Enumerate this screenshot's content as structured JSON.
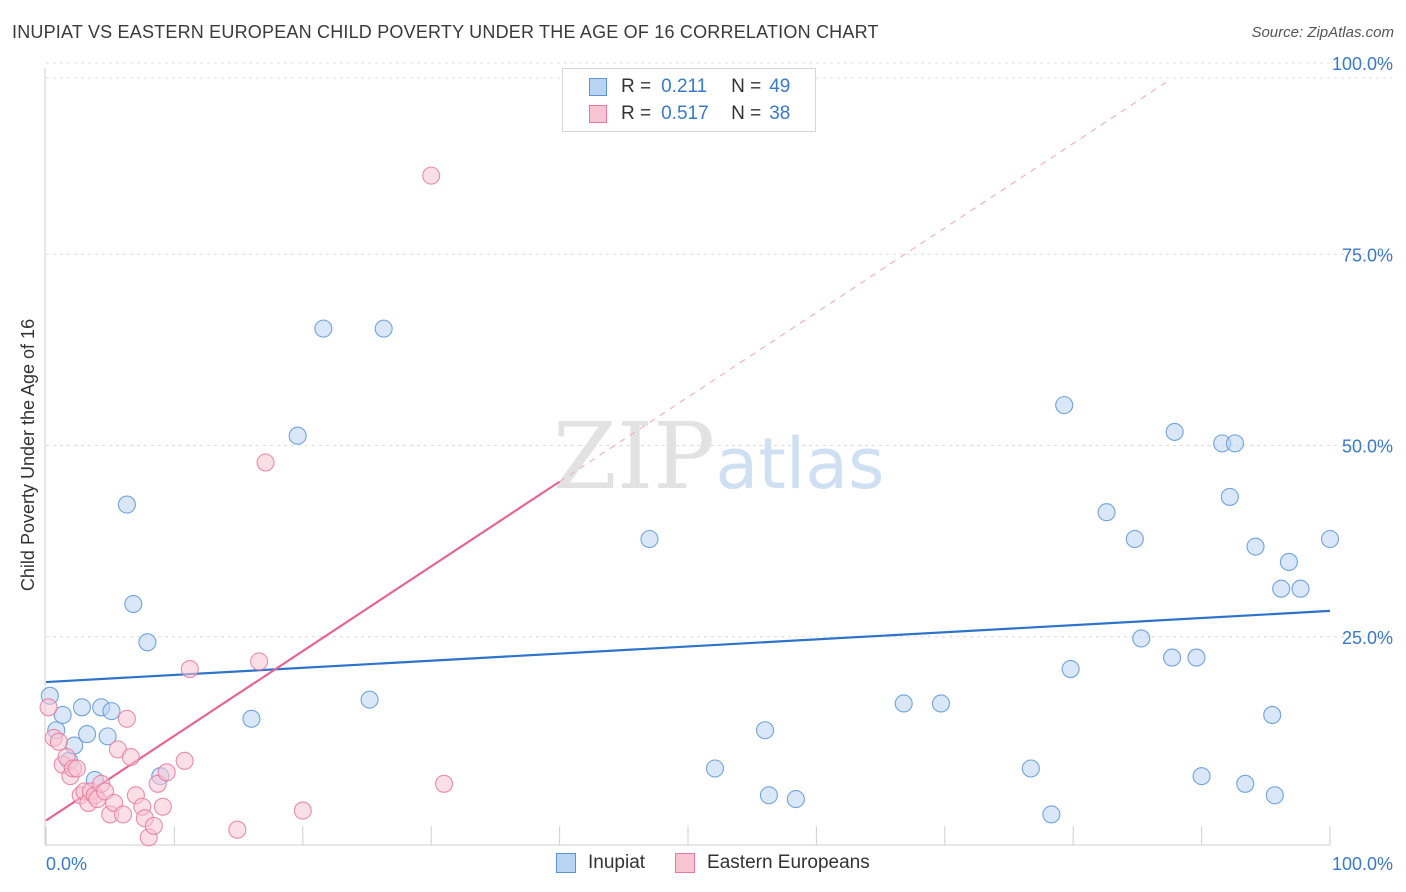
{
  "title": "INUPIAT VS EASTERN EUROPEAN CHILD POVERTY UNDER THE AGE OF 16 CORRELATION CHART",
  "source": "Source: ZipAtlas.com",
  "watermark": {
    "zip": "ZIP",
    "atlas": "atlas"
  },
  "legend": {
    "rows": [
      {
        "r_label": "R =",
        "r_value": "0.211",
        "n_label": "N =",
        "n_value": "49"
      },
      {
        "r_label": "R =",
        "r_value": "0.517",
        "n_label": "N =",
        "n_value": "38"
      }
    ]
  },
  "bottom_legend": {
    "items": [
      "Inupiat",
      "Eastern Europeans"
    ]
  },
  "chart_data": {
    "type": "scatter",
    "title": "INUPIAT VS EASTERN EUROPEAN CHILD POVERTY UNDER THE AGE OF 16 CORRELATION CHART",
    "xlabel": "",
    "ylabel": "Child Poverty Under the Age of 16",
    "xlim": [
      0,
      100
    ],
    "ylim": [
      0,
      100
    ],
    "x_tick_labels": [
      "0.0%",
      "100.0%"
    ],
    "y_tick_labels": [
      "100.0%",
      "75.0%",
      "50.0%",
      "25.0%"
    ],
    "y_ticks": [
      100,
      75,
      50,
      25
    ],
    "grid": true,
    "legend_position": "top-center",
    "colors": {
      "inupiat": "#5b95d8",
      "inupiat_fill": "#b9d3f2",
      "eastern": "#e8799e",
      "eastern_fill": "#f8c4d4",
      "tick_label": "#3a78c8"
    },
    "series": [
      {
        "name": "Inupiat",
        "color": "#5b95d8",
        "r": 0.211,
        "n": 49,
        "trend": {
          "x": [
            0,
            100
          ],
          "y": [
            21.3,
            30.6
          ],
          "dashed_extension": false
        },
        "points": [
          [
            0.3,
            19.5
          ],
          [
            0.8,
            15.0
          ],
          [
            1.3,
            17.0
          ],
          [
            1.8,
            11.0
          ],
          [
            2.2,
            13.0
          ],
          [
            2.8,
            18.0
          ],
          [
            3.2,
            14.5
          ],
          [
            3.8,
            8.5
          ],
          [
            4.3,
            18.0
          ],
          [
            4.8,
            14.2
          ],
          [
            5.1,
            17.5
          ],
          [
            6.3,
            44.5
          ],
          [
            6.8,
            31.5
          ],
          [
            7.9,
            26.5
          ],
          [
            8.9,
            9.0
          ],
          [
            16.0,
            16.5
          ],
          [
            19.6,
            53.5
          ],
          [
            21.6,
            67.5
          ],
          [
            25.2,
            19.0
          ],
          [
            26.3,
            67.5
          ],
          [
            47.0,
            40.0
          ],
          [
            52.1,
            10.0
          ],
          [
            56.0,
            15.0
          ],
          [
            56.3,
            6.5
          ],
          [
            58.4,
            6.0
          ],
          [
            66.8,
            18.5
          ],
          [
            69.7,
            18.5
          ],
          [
            76.7,
            10.0
          ],
          [
            78.3,
            4.0
          ],
          [
            79.3,
            57.5
          ],
          [
            79.8,
            23.0
          ],
          [
            82.6,
            43.5
          ],
          [
            84.8,
            40.0
          ],
          [
            85.3,
            27.0
          ],
          [
            87.7,
            24.5
          ],
          [
            87.9,
            54.0
          ],
          [
            89.6,
            24.5
          ],
          [
            90.0,
            9.0
          ],
          [
            91.6,
            52.5
          ],
          [
            92.2,
            45.5
          ],
          [
            92.6,
            52.5
          ],
          [
            93.4,
            8.0
          ],
          [
            94.2,
            39.0
          ],
          [
            95.5,
            17.0
          ],
          [
            95.7,
            6.5
          ],
          [
            96.2,
            33.5
          ],
          [
            96.8,
            37.0
          ],
          [
            97.7,
            33.5
          ],
          [
            100.0,
            40.0
          ]
        ]
      },
      {
        "name": "Eastern Europeans",
        "color": "#e8799e",
        "r": 0.517,
        "n": 38,
        "trend": {
          "x": [
            0,
            40
          ],
          "y": [
            3.2,
            47.5
          ],
          "dashed_extension": true,
          "dashed_to": {
            "x": 87.5,
            "y": 100
          }
        },
        "points": [
          [
            0.2,
            18.0
          ],
          [
            0.6,
            14.0
          ],
          [
            1.0,
            13.5
          ],
          [
            1.3,
            10.5
          ],
          [
            1.6,
            11.5
          ],
          [
            1.9,
            9.0
          ],
          [
            2.1,
            10.0
          ],
          [
            2.4,
            10.0
          ],
          [
            2.7,
            6.5
          ],
          [
            3.0,
            7.0
          ],
          [
            3.3,
            5.5
          ],
          [
            3.5,
            7.0
          ],
          [
            3.8,
            6.5
          ],
          [
            4.0,
            6.0
          ],
          [
            4.3,
            8.0
          ],
          [
            4.6,
            7.0
          ],
          [
            5.0,
            4.0
          ],
          [
            5.3,
            5.5
          ],
          [
            5.6,
            12.5
          ],
          [
            6.0,
            4.0
          ],
          [
            6.3,
            16.5
          ],
          [
            6.6,
            11.5
          ],
          [
            7.0,
            6.5
          ],
          [
            7.5,
            5.0
          ],
          [
            7.7,
            3.5
          ],
          [
            8.0,
            1.0
          ],
          [
            8.4,
            2.5
          ],
          [
            8.7,
            8.0
          ],
          [
            9.1,
            5.0
          ],
          [
            9.4,
            9.5
          ],
          [
            10.8,
            11.0
          ],
          [
            11.2,
            23.0
          ],
          [
            14.9,
            2.0
          ],
          [
            16.6,
            24.0
          ],
          [
            17.1,
            50.0
          ],
          [
            20.0,
            4.5
          ],
          [
            30.0,
            87.5
          ],
          [
            31.0,
            8.0
          ]
        ]
      }
    ]
  }
}
